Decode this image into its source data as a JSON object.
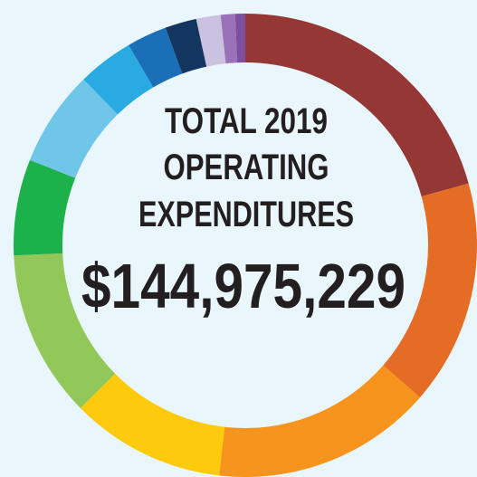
{
  "chart_data": {
    "type": "donut",
    "title_lines": [
      "TOTAL 2019",
      "OPERATING",
      "EXPENDITURES"
    ],
    "total_label": "$144,975,229",
    "values": [
      20.7,
      15.7,
      15.4,
      10.8,
      11.7,
      6.7,
      6.7,
      3.9,
      2.8,
      2.2,
      1.7,
      1.0,
      0.7
    ],
    "colors": [
      "#953735",
      "#e46c25",
      "#f7941d",
      "#fdca0c",
      "#92c85a",
      "#1db14b",
      "#6fc6e8",
      "#29abe2",
      "#1b6fb9",
      "#12365f",
      "#cbc2df",
      "#9b71b9",
      "#7c4f9f"
    ]
  }
}
